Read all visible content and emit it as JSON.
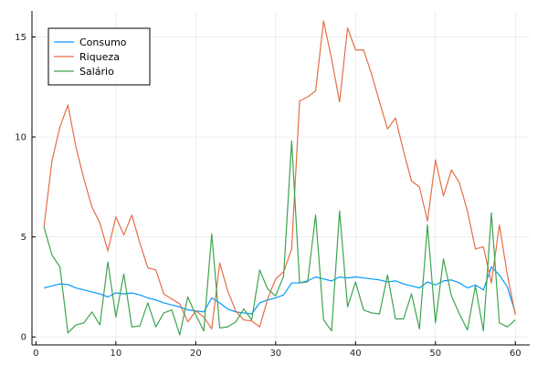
{
  "chart_data": {
    "type": "line",
    "title": "",
    "xlabel": "",
    "ylabel": "",
    "xlim": [
      -0.5,
      61.8
    ],
    "ylim": [
      -0.4,
      16.3
    ],
    "xticks": [
      0,
      10,
      20,
      30,
      40,
      50,
      60
    ],
    "yticks": [
      0,
      5,
      10,
      15
    ],
    "grid": true,
    "legend_position": "top-left",
    "x": [
      1,
      2,
      3,
      4,
      5,
      6,
      7,
      8,
      9,
      10,
      11,
      12,
      13,
      14,
      15,
      16,
      17,
      18,
      19,
      20,
      21,
      22,
      23,
      24,
      25,
      26,
      27,
      28,
      29,
      30,
      31,
      32,
      33,
      34,
      35,
      36,
      37,
      38,
      39,
      40,
      41,
      42,
      43,
      44,
      45,
      46,
      47,
      48,
      49,
      50,
      51,
      52,
      53,
      54,
      55,
      56,
      57,
      58,
      59,
      60
    ],
    "series": [
      {
        "name": "Consumo",
        "color": "#009AFA",
        "values": [
          2.45,
          2.55,
          2.65,
          2.62,
          2.45,
          2.35,
          2.25,
          2.15,
          2.0,
          2.2,
          2.15,
          2.2,
          2.1,
          1.95,
          1.85,
          1.7,
          1.6,
          1.5,
          1.35,
          1.3,
          1.25,
          1.95,
          1.7,
          1.4,
          1.25,
          1.2,
          1.15,
          1.7,
          1.85,
          1.95,
          2.1,
          2.7,
          2.7,
          2.8,
          3.0,
          2.9,
          2.8,
          3.0,
          2.95,
          3.0,
          2.95,
          2.9,
          2.85,
          2.75,
          2.8,
          2.65,
          2.55,
          2.45,
          2.75,
          2.6,
          2.8,
          2.85,
          2.7,
          2.45,
          2.6,
          2.35,
          3.5,
          3.1,
          2.5,
          1.2
        ]
      },
      {
        "name": "Riqueza",
        "color": "#E36F47",
        "values": [
          5.5,
          8.8,
          10.5,
          11.6,
          9.5,
          7.9,
          6.5,
          5.7,
          4.3,
          6.0,
          5.1,
          6.1,
          4.7,
          3.45,
          3.35,
          2.15,
          1.9,
          1.65,
          0.75,
          1.3,
          1.0,
          0.4,
          3.7,
          2.3,
          1.3,
          0.85,
          0.8,
          0.5,
          1.9,
          2.9,
          3.25,
          4.4,
          11.8,
          12.0,
          12.3,
          15.8,
          13.9,
          11.75,
          15.45,
          14.35,
          14.35,
          13.15,
          11.75,
          10.4,
          10.95,
          9.3,
          7.8,
          7.5,
          5.8,
          8.85,
          7.05,
          8.35,
          7.7,
          6.3,
          4.4,
          4.5,
          2.7,
          5.6,
          3.1,
          1.1
        ]
      },
      {
        "name": "Salário",
        "color": "#3EA44E",
        "values": [
          5.5,
          4.1,
          3.5,
          0.2,
          0.6,
          0.7,
          1.25,
          0.6,
          3.75,
          1.0,
          3.15,
          0.5,
          0.55,
          1.7,
          0.5,
          1.2,
          1.35,
          0.1,
          2.0,
          1.1,
          0.3,
          5.15,
          0.45,
          0.5,
          0.75,
          1.4,
          0.85,
          3.35,
          2.4,
          2.05,
          3.05,
          9.8,
          2.7,
          2.75,
          6.1,
          0.85,
          0.3,
          6.3,
          1.5,
          2.75,
          1.35,
          1.2,
          1.15,
          3.1,
          0.9,
          0.9,
          2.15,
          0.4,
          5.6,
          0.7,
          3.9,
          2.05,
          1.15,
          0.35,
          2.55,
          0.3,
          6.2,
          0.7,
          0.5,
          0.85
        ]
      }
    ]
  }
}
